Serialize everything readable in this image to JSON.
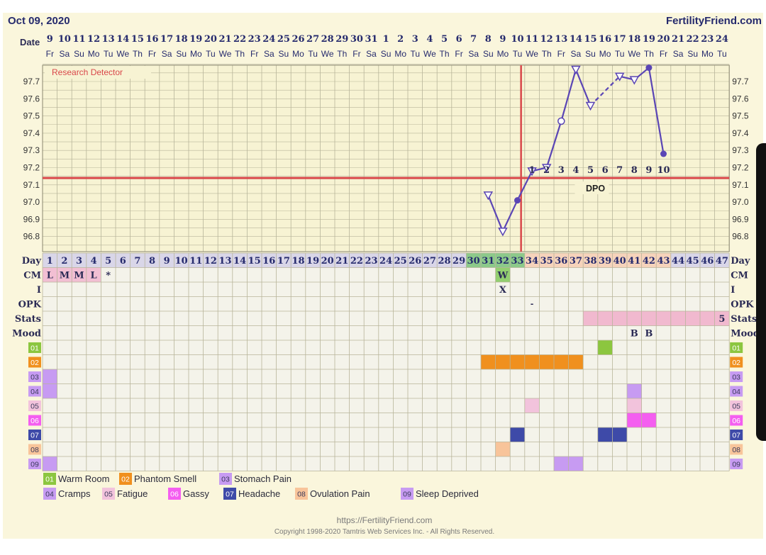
{
  "header": {
    "date": "Oct 09, 2020",
    "site": "FertilityFriend.com"
  },
  "chart_data": {
    "type": "line",
    "title": "Research Detector",
    "row_labels": {
      "date": "Date",
      "day": "Day",
      "cm": "CM",
      "i": "I",
      "opk": "OPK",
      "stats": "Stats",
      "mood": "Mood"
    },
    "dates": [
      "9",
      "10",
      "11",
      "12",
      "13",
      "14",
      "15",
      "16",
      "17",
      "18",
      "19",
      "20",
      "21",
      "22",
      "23",
      "24",
      "25",
      "26",
      "27",
      "28",
      "29",
      "30",
      "31",
      "1",
      "2",
      "3",
      "4",
      "5",
      "6",
      "7",
      "8",
      "9",
      "10",
      "11",
      "12",
      "13",
      "14",
      "15",
      "16",
      "17",
      "18",
      "19",
      "20",
      "21",
      "22",
      "23",
      "24"
    ],
    "weekdays": [
      "Fr",
      "Sa",
      "Su",
      "Mo",
      "Tu",
      "We",
      "Th",
      "Fr",
      "Sa",
      "Su",
      "Mo",
      "Tu",
      "We",
      "Th",
      "Fr",
      "Sa",
      "Su",
      "Mo",
      "Tu",
      "We",
      "Th",
      "Fr",
      "Sa",
      "Su",
      "Mo",
      "Tu",
      "We",
      "Th",
      "Fr",
      "Sa",
      "Su",
      "Mo",
      "Tu",
      "We",
      "Th",
      "Fr",
      "Sa",
      "Su",
      "Mo",
      "Tu",
      "We",
      "Th",
      "Fr",
      "Sa",
      "Su",
      "Mo",
      "Tu"
    ],
    "days": [
      "1",
      "2",
      "3",
      "4",
      "5",
      "6",
      "7",
      "8",
      "9",
      "10",
      "11",
      "12",
      "13",
      "14",
      "15",
      "16",
      "17",
      "18",
      "19",
      "20",
      "21",
      "22",
      "23",
      "24",
      "25",
      "26",
      "27",
      "28",
      "29",
      "30",
      "31",
      "32",
      "33",
      "34",
      "35",
      "36",
      "37",
      "38",
      "39",
      "40",
      "41",
      "42",
      "43",
      "44",
      "45",
      "46",
      "47"
    ],
    "fertile_days": [
      30,
      31,
      32,
      33
    ],
    "luteal_days": [
      34,
      35,
      36,
      37,
      38,
      39,
      40,
      41,
      42,
      43
    ],
    "y_ticks": [
      "97.7",
      "97.6",
      "97.5",
      "97.4",
      "97.3",
      "97.2",
      "97.1",
      "97.0",
      "96.9",
      "96.8"
    ],
    "ylim": [
      96.75,
      97.8
    ],
    "coverline": 97.14,
    "ovulation_day": 33,
    "dpo_label": "DPO",
    "dpo": [
      {
        "day": 34,
        "n": "1"
      },
      {
        "day": 35,
        "n": "2"
      },
      {
        "day": 36,
        "n": "3"
      },
      {
        "day": 37,
        "n": "4"
      },
      {
        "day": 38,
        "n": "5"
      },
      {
        "day": 39,
        "n": "6"
      },
      {
        "day": 40,
        "n": "7"
      },
      {
        "day": 41,
        "n": "8"
      },
      {
        "day": 42,
        "n": "9"
      },
      {
        "day": 43,
        "n": "10"
      }
    ],
    "series": [
      {
        "points": [
          {
            "day": 31,
            "temp": 97.04,
            "marker": "triangle"
          },
          {
            "day": 32,
            "temp": 96.83,
            "marker": "triangle"
          },
          {
            "day": 33,
            "temp": 97.01,
            "marker": "dot"
          },
          {
            "day": 34,
            "temp": 97.18,
            "marker": "triangle"
          },
          {
            "day": 35,
            "temp": 97.2,
            "marker": "triangle"
          },
          {
            "day": 36,
            "temp": 97.47,
            "marker": "circle"
          },
          {
            "day": 37,
            "temp": 97.77,
            "marker": "triangle"
          },
          {
            "day": 38,
            "temp": 97.56,
            "marker": "triangle"
          },
          {
            "day": 40,
            "temp": 97.73,
            "marker": "triangle"
          },
          {
            "day": 41,
            "temp": 97.71,
            "marker": "triangle"
          },
          {
            "day": 42,
            "temp": 97.78,
            "marker": "dot"
          },
          {
            "day": 43,
            "temp": 97.28,
            "marker": "dot"
          }
        ]
      }
    ],
    "dashed_segments": [
      [
        38,
        40
      ]
    ],
    "cm_entries": [
      {
        "day": 1,
        "value": "L",
        "color": "#f2bfd3"
      },
      {
        "day": 2,
        "value": "M",
        "color": "#f2bfd3"
      },
      {
        "day": 3,
        "value": "M",
        "color": "#f2bfd3"
      },
      {
        "day": 4,
        "value": "L",
        "color": "#f2bfd3"
      },
      {
        "day": 5,
        "value": "*",
        "color": ""
      },
      {
        "day": 32,
        "value": "W",
        "color": "#93cf70"
      }
    ],
    "i_entries": [
      {
        "day": 32,
        "value": "X"
      }
    ],
    "opk_entries": [
      {
        "day": 34,
        "value": "-"
      }
    ],
    "stats": {
      "start_day": 38,
      "end_day": 47,
      "color": "#f1b9cf",
      "end_value": "5"
    },
    "mood_entries": [
      {
        "day": 41,
        "value": "B"
      },
      {
        "day": 42,
        "value": "B"
      }
    ],
    "symptom_codes": [
      "01",
      "02",
      "03",
      "04",
      "05",
      "06",
      "07",
      "08",
      "09"
    ],
    "symptom_colors": [
      "#8cc63f",
      "#f0901e",
      "#c79bf2",
      "#c79bf2",
      "#f2c3dc",
      "#f45ef0",
      "#3e4aa8",
      "#f8c49a",
      "#c79bf2"
    ],
    "symptom_marks": [
      {
        "row": "01",
        "days": [
          39
        ]
      },
      {
        "row": "02",
        "days": [
          31,
          32,
          33,
          34,
          35,
          36,
          37
        ]
      },
      {
        "row": "03",
        "days": [
          1
        ]
      },
      {
        "row": "04",
        "days": [
          1,
          41
        ]
      },
      {
        "row": "05",
        "days": [
          34,
          41
        ]
      },
      {
        "row": "06",
        "days": [
          41,
          42
        ]
      },
      {
        "row": "07",
        "days": [
          33,
          39,
          40
        ]
      },
      {
        "row": "08",
        "days": [
          32
        ]
      },
      {
        "row": "09",
        "days": [
          1,
          36,
          37
        ]
      }
    ],
    "legend": [
      {
        "code": "01",
        "label": "Warm Room",
        "color": "#8cc63f"
      },
      {
        "code": "02",
        "label": "Phantom Smell",
        "color": "#f0901e"
      },
      {
        "code": "03",
        "label": "Stomach Pain",
        "color": "#c79bf2"
      },
      {
        "code": "04",
        "label": "Cramps",
        "color": "#c79bf2"
      },
      {
        "code": "05",
        "label": "Fatigue",
        "color": "#f2c3dc"
      },
      {
        "code": "06",
        "label": "Gassy",
        "color": "#f45ef0"
      },
      {
        "code": "07",
        "label": "Headache",
        "color": "#3e4aa8"
      },
      {
        "code": "08",
        "label": "Ovulation Pain",
        "color": "#f8c49a"
      },
      {
        "code": "09",
        "label": "Sleep Deprived",
        "color": "#c79bf2"
      }
    ]
  },
  "colors": {
    "background": "#faf6dc",
    "plot": "#f7f3d3",
    "grid": "#b8b59a",
    "line": "#5a45b5",
    "red": "#d9474a",
    "text": "#252a6d",
    "row_label": "#2b2b55",
    "day_row": "#d9d6e8",
    "fertile": "#8cc98a",
    "luteal": "#f6d3bb",
    "cell": "#f4f3ea"
  },
  "footer": {
    "url": "https://FertilityFriend.com",
    "copyright": "Copyright 1998-2020 Tamtris Web Services Inc. - All Rights Reserved."
  }
}
